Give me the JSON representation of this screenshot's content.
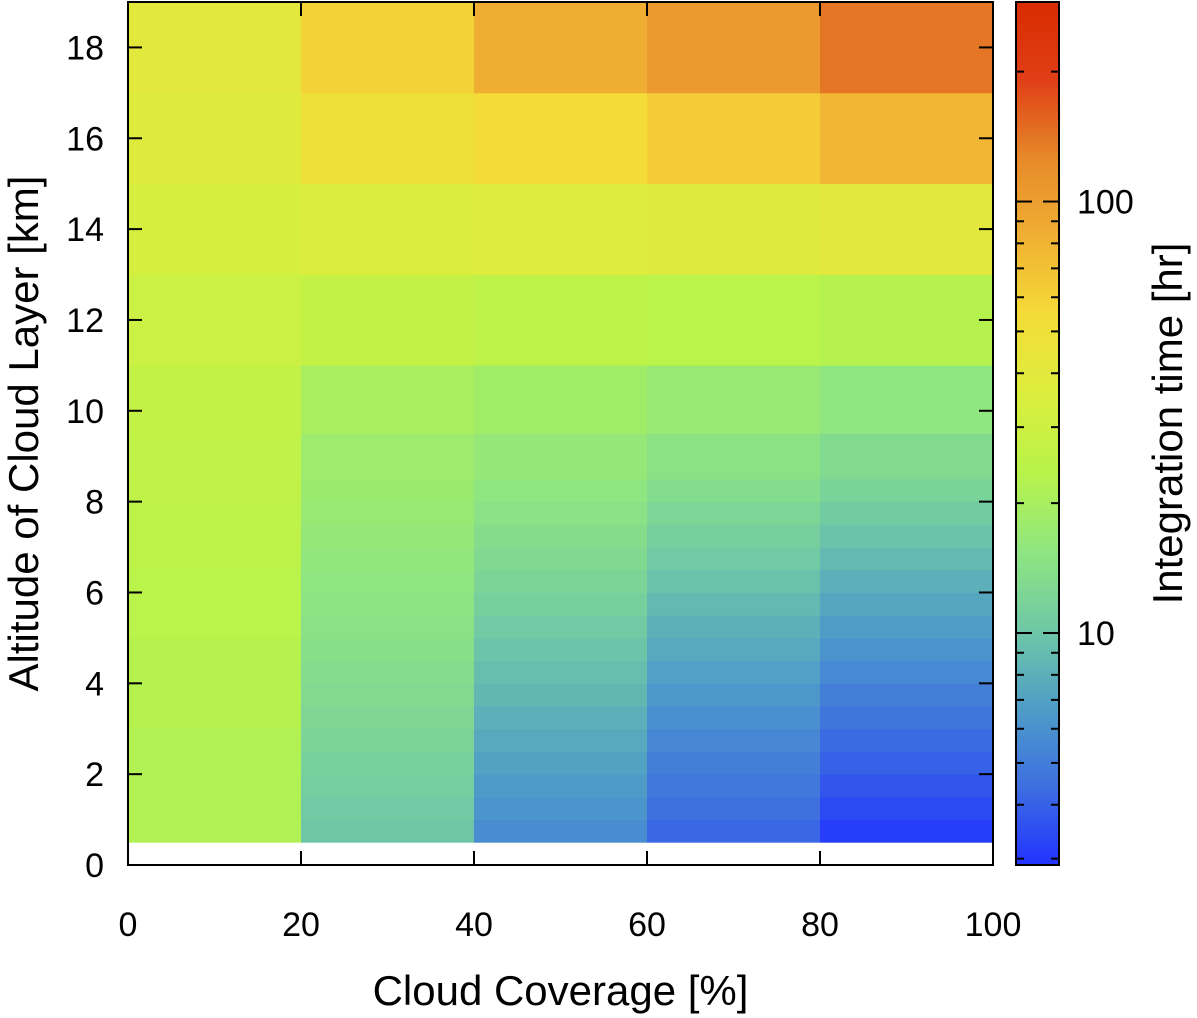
{
  "chart_data": {
    "type": "heatmap",
    "title": "",
    "xlabel": "Cloud Coverage [%]",
    "ylabel": "Altitude of Cloud Layer [km]",
    "colorbar_label": "Integration time [hr]",
    "xlim": [
      0,
      100
    ],
    "ylim": [
      0,
      19
    ],
    "x_ticks": [
      "0",
      "20",
      "40",
      "60",
      "80",
      "100"
    ],
    "y_ticks": [
      "0",
      "2",
      "4",
      "6",
      "8",
      "10",
      "12",
      "14",
      "16",
      "18"
    ],
    "colorbar": {
      "scale": "log",
      "range": [
        2.9,
        290
      ],
      "tick_labels": [
        "10",
        "100"
      ],
      "colormap": [
        "#2233ff",
        "#3d6fe0",
        "#4f9dc7",
        "#6fc8a6",
        "#8fe680",
        "#b8f34a",
        "#dcee3d",
        "#f4dc38",
        "#f0b033",
        "#e68a2a",
        "#e03f17",
        "#d92b00"
      ]
    },
    "x_bins": [
      0,
      20,
      40,
      60,
      80,
      100
    ],
    "y_bins": [
      0.5,
      1.0,
      1.5,
      2.0,
      2.5,
      3.0,
      3.5,
      4.0,
      4.5,
      5.0,
      5.5,
      6.0,
      6.5,
      7.0,
      7.5,
      8.0,
      8.5,
      9.5,
      11.0,
      13.0,
      15.0,
      17.0,
      19.0
    ],
    "values": [
      [
        22,
        10.0,
        5.8,
        4.2,
        3.1
      ],
      [
        22,
        10.5,
        6.2,
        4.5,
        3.4
      ],
      [
        22,
        11.0,
        6.6,
        4.8,
        3.7
      ],
      [
        22,
        11.5,
        7.0,
        5.1,
        4.0
      ],
      [
        22,
        12.0,
        7.5,
        5.5,
        4.3
      ],
      [
        23,
        12.5,
        8.0,
        5.9,
        4.7
      ],
      [
        23,
        13.0,
        8.6,
        6.4,
        5.1
      ],
      [
        23,
        13.5,
        9.2,
        6.9,
        5.6
      ],
      [
        23,
        14.0,
        9.8,
        7.5,
        6.1
      ],
      [
        24,
        14.5,
        10.5,
        8.1,
        6.7
      ],
      [
        24,
        15.0,
        11.2,
        8.8,
        7.3
      ],
      [
        24,
        15.5,
        12.0,
        9.6,
        8.0
      ],
      [
        25,
        16.0,
        12.8,
        10.4,
        8.8
      ],
      [
        25,
        16.5,
        13.6,
        11.3,
        9.7
      ],
      [
        25,
        17.0,
        14.5,
        12.3,
        10.7
      ],
      [
        26,
        17.5,
        15.5,
        13.4,
        11.8
      ],
      [
        26,
        18.0,
        16.5,
        14.6,
        13.0
      ],
      [
        27,
        20.0,
        18.5,
        17.0,
        15.5
      ],
      [
        29,
        27.0,
        25.0,
        24.0,
        23.0
      ],
      [
        33,
        36.0,
        37.0,
        38.0,
        40.0
      ],
      [
        38,
        50.0,
        55.0,
        63.0,
        78.0
      ],
      [
        40,
        60.0,
        85.0,
        105.0,
        140.0
      ],
      [
        40,
        62.0,
        95.0,
        130.0,
        200.0
      ]
    ]
  }
}
